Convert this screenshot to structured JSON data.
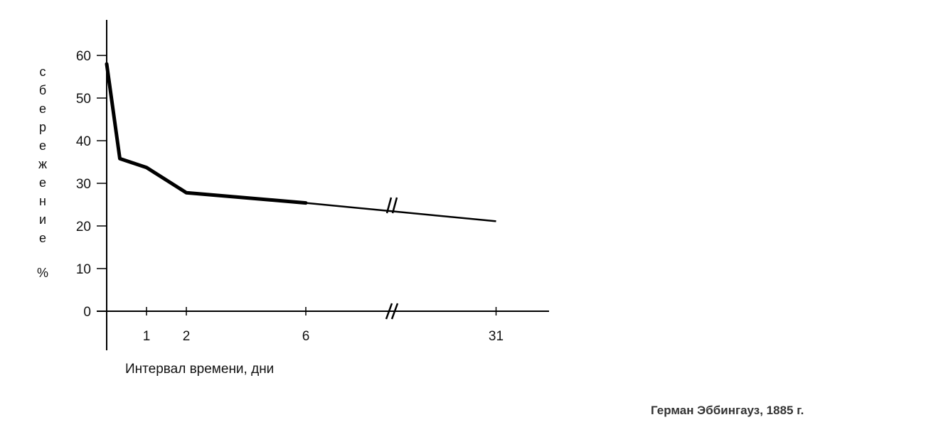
{
  "chart_data": {
    "type": "line",
    "title": "",
    "xlabel": "Интервал времени, дни",
    "ylabel": "сбережение %",
    "ylabel_chars": [
      "с",
      "б",
      "е",
      "р",
      "е",
      "ж",
      "е",
      "н",
      "и",
      "е",
      "%"
    ],
    "ylim": [
      0,
      60
    ],
    "y_ticks": [
      {
        "value": 0,
        "label": "0"
      },
      {
        "value": 10,
        "label": "10"
      },
      {
        "value": 20,
        "label": "20"
      },
      {
        "value": 30,
        "label": "30"
      },
      {
        "value": 40,
        "label": "40"
      },
      {
        "value": 50,
        "label": "50"
      },
      {
        "value": 60,
        "label": "60"
      }
    ],
    "x_ticks": [
      {
        "value": 1,
        "label": "1"
      },
      {
        "value": 2,
        "label": "2"
      },
      {
        "value": 6,
        "label": "6"
      },
      {
        "value": 31,
        "label": "31"
      }
    ],
    "axis_break": "between 6 and 31",
    "grid": false,
    "legend": "none",
    "line_color": "#000000",
    "series": [
      {
        "x": [
          0,
          0.33,
          1,
          2,
          6,
          31
        ],
        "y": [
          58,
          35.8,
          33.7,
          27.8,
          25.4,
          21.1
        ]
      }
    ]
  },
  "caption": "Герман Эббингауз, 1885 г."
}
